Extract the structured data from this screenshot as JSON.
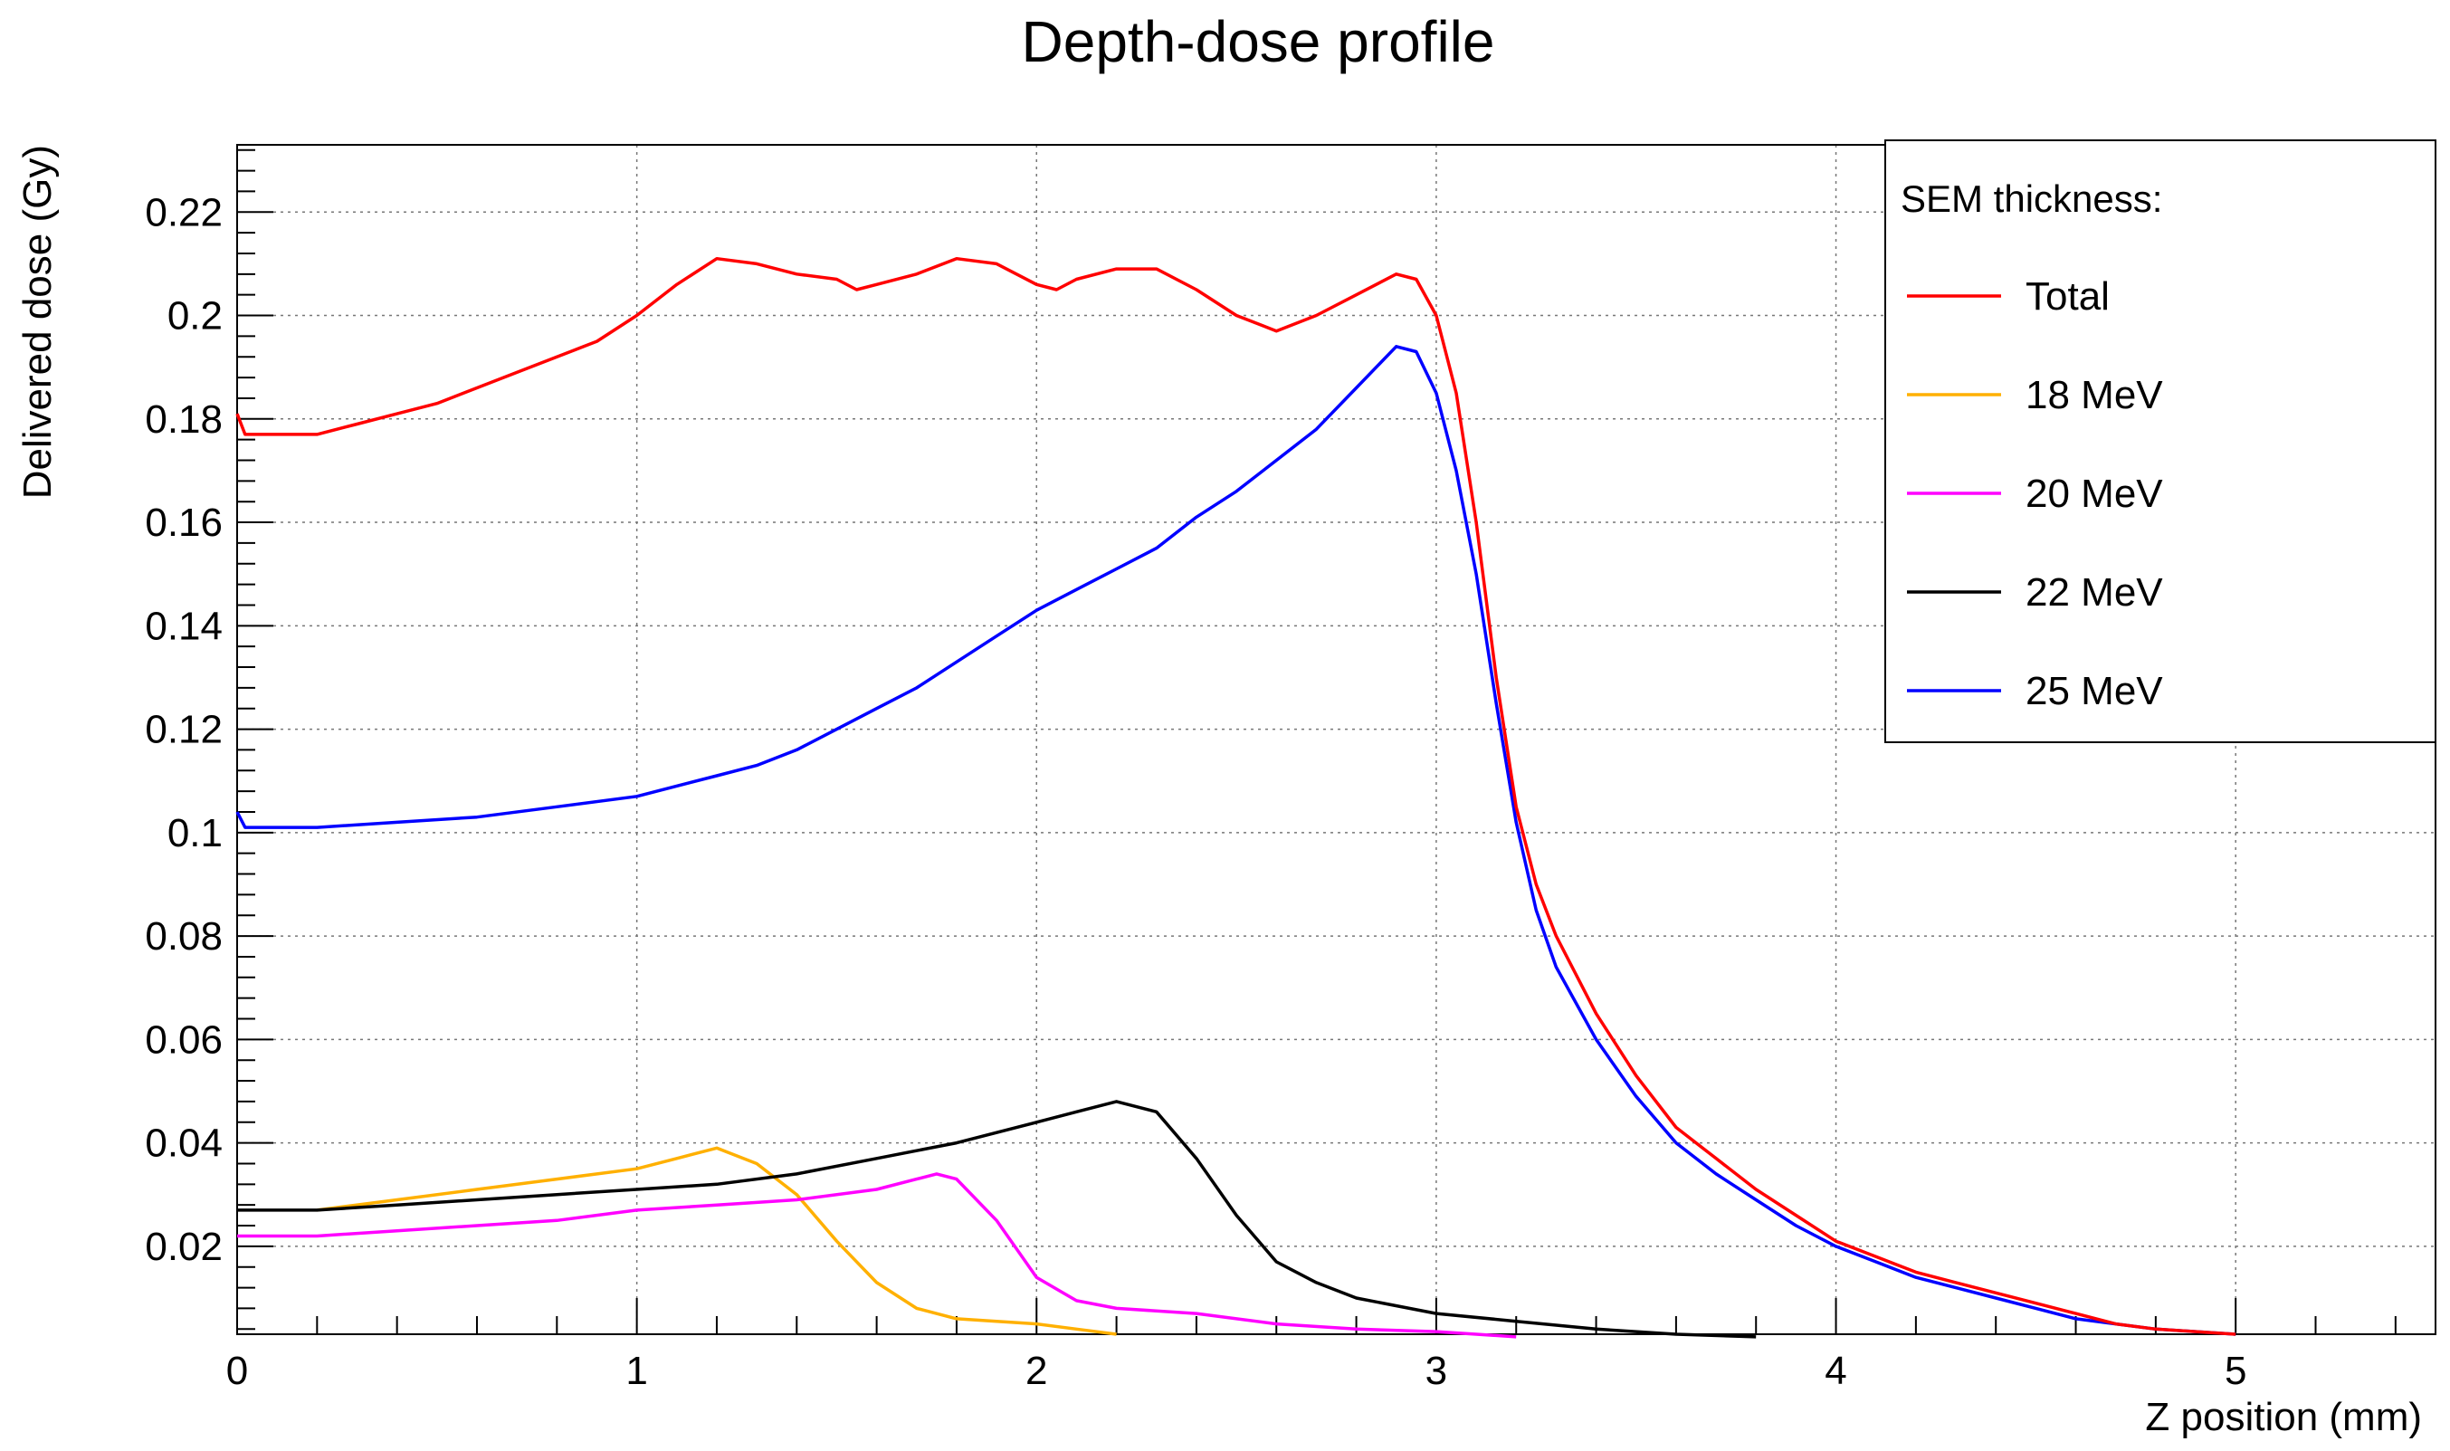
{
  "chart_data": {
    "type": "line",
    "title": "Depth-dose profile",
    "xlabel": "Z position (mm)",
    "ylabel": "Delivered dose (Gy)",
    "xlim": [
      0,
      5.5
    ],
    "ylim": [
      0.003,
      0.233
    ],
    "x_ticks": [
      {
        "v": 0,
        "label": "0"
      },
      {
        "v": 1,
        "label": "1"
      },
      {
        "v": 2,
        "label": "2"
      },
      {
        "v": 3,
        "label": "3"
      },
      {
        "v": 4,
        "label": "4"
      },
      {
        "v": 5,
        "label": "5"
      }
    ],
    "y_ticks": [
      {
        "v": 0.02,
        "label": "0.02"
      },
      {
        "v": 0.04,
        "label": "0.04"
      },
      {
        "v": 0.06,
        "label": "0.06"
      },
      {
        "v": 0.08,
        "label": "0.08"
      },
      {
        "v": 0.1,
        "label": "0.1"
      },
      {
        "v": 0.12,
        "label": "0.12"
      },
      {
        "v": 0.14,
        "label": "0.14"
      },
      {
        "v": 0.16,
        "label": "0.16"
      },
      {
        "v": 0.18,
        "label": "0.18"
      },
      {
        "v": 0.2,
        "label": "0.2"
      },
      {
        "v": 0.22,
        "label": "0.22"
      }
    ],
    "grid": true,
    "legend_title": "SEM thickness:",
    "legend_position": "top-right",
    "series": [
      {
        "name": "Total",
        "color": "#ff0000",
        "points": [
          [
            0,
            0.181
          ],
          [
            0.02,
            0.177
          ],
          [
            0.1,
            0.177
          ],
          [
            0.2,
            0.177
          ],
          [
            0.3,
            0.179
          ],
          [
            0.4,
            0.181
          ],
          [
            0.5,
            0.183
          ],
          [
            0.6,
            0.186
          ],
          [
            0.7,
            0.189
          ],
          [
            0.8,
            0.192
          ],
          [
            0.9,
            0.195
          ],
          [
            1.0,
            0.2
          ],
          [
            1.1,
            0.206
          ],
          [
            1.2,
            0.211
          ],
          [
            1.3,
            0.21
          ],
          [
            1.4,
            0.208
          ],
          [
            1.5,
            0.207
          ],
          [
            1.55,
            0.205
          ],
          [
            1.6,
            0.206
          ],
          [
            1.7,
            0.208
          ],
          [
            1.8,
            0.211
          ],
          [
            1.9,
            0.21
          ],
          [
            2.0,
            0.206
          ],
          [
            2.05,
            0.205
          ],
          [
            2.1,
            0.207
          ],
          [
            2.2,
            0.209
          ],
          [
            2.3,
            0.209
          ],
          [
            2.4,
            0.205
          ],
          [
            2.5,
            0.2
          ],
          [
            2.6,
            0.197
          ],
          [
            2.7,
            0.2
          ],
          [
            2.8,
            0.204
          ],
          [
            2.9,
            0.208
          ],
          [
            2.95,
            0.207
          ],
          [
            3.0,
            0.2
          ],
          [
            3.05,
            0.185
          ],
          [
            3.1,
            0.16
          ],
          [
            3.15,
            0.13
          ],
          [
            3.2,
            0.105
          ],
          [
            3.25,
            0.09
          ],
          [
            3.3,
            0.08
          ],
          [
            3.4,
            0.065
          ],
          [
            3.5,
            0.053
          ],
          [
            3.6,
            0.043
          ],
          [
            3.7,
            0.037
          ],
          [
            3.8,
            0.031
          ],
          [
            3.9,
            0.026
          ],
          [
            4.0,
            0.021
          ],
          [
            4.1,
            0.018
          ],
          [
            4.2,
            0.015
          ],
          [
            4.3,
            0.013
          ],
          [
            4.4,
            0.011
          ],
          [
            4.5,
            0.009
          ],
          [
            4.6,
            0.007
          ],
          [
            4.7,
            0.005
          ],
          [
            4.8,
            0.004
          ],
          [
            4.9,
            0.0035
          ],
          [
            5.0,
            0.003
          ]
        ]
      },
      {
        "name": "18 MeV",
        "color": "#ffb000",
        "points": [
          [
            0.2,
            0.027
          ],
          [
            0.4,
            0.029
          ],
          [
            0.6,
            0.031
          ],
          [
            0.8,
            0.033
          ],
          [
            1.0,
            0.035
          ],
          [
            1.1,
            0.037
          ],
          [
            1.2,
            0.039
          ],
          [
            1.3,
            0.036
          ],
          [
            1.4,
            0.03
          ],
          [
            1.5,
            0.021
          ],
          [
            1.6,
            0.013
          ],
          [
            1.7,
            0.008
          ],
          [
            1.8,
            0.006
          ],
          [
            1.9,
            0.0055
          ],
          [
            2.0,
            0.005
          ],
          [
            2.1,
            0.004
          ],
          [
            2.2,
            0.003
          ]
        ]
      },
      {
        "name": "20 MeV",
        "color": "#ff00ff",
        "points": [
          [
            0,
            0.022
          ],
          [
            0.2,
            0.022
          ],
          [
            0.4,
            0.023
          ],
          [
            0.6,
            0.024
          ],
          [
            0.8,
            0.025
          ],
          [
            1.0,
            0.027
          ],
          [
            1.2,
            0.028
          ],
          [
            1.4,
            0.029
          ],
          [
            1.6,
            0.031
          ],
          [
            1.7,
            0.033
          ],
          [
            1.75,
            0.034
          ],
          [
            1.8,
            0.033
          ],
          [
            1.9,
            0.025
          ],
          [
            2.0,
            0.014
          ],
          [
            2.1,
            0.0095
          ],
          [
            2.2,
            0.008
          ],
          [
            2.4,
            0.007
          ],
          [
            2.6,
            0.005
          ],
          [
            2.8,
            0.004
          ],
          [
            3.0,
            0.0035
          ],
          [
            3.1,
            0.003
          ],
          [
            3.2,
            0.0025
          ]
        ]
      },
      {
        "name": "22 MeV",
        "color": "#000000",
        "points": [
          [
            0,
            0.027
          ],
          [
            0.2,
            0.027
          ],
          [
            0.4,
            0.028
          ],
          [
            0.6,
            0.029
          ],
          [
            0.8,
            0.03
          ],
          [
            1.0,
            0.031
          ],
          [
            1.2,
            0.032
          ],
          [
            1.4,
            0.034
          ],
          [
            1.6,
            0.037
          ],
          [
            1.8,
            0.04
          ],
          [
            2.0,
            0.044
          ],
          [
            2.1,
            0.046
          ],
          [
            2.2,
            0.048
          ],
          [
            2.3,
            0.046
          ],
          [
            2.4,
            0.037
          ],
          [
            2.5,
            0.026
          ],
          [
            2.6,
            0.017
          ],
          [
            2.7,
            0.013
          ],
          [
            2.8,
            0.01
          ],
          [
            3.0,
            0.007
          ],
          [
            3.2,
            0.0055
          ],
          [
            3.4,
            0.004
          ],
          [
            3.6,
            0.003
          ],
          [
            3.8,
            0.0025
          ]
        ]
      },
      {
        "name": "25 MeV",
        "color": "#0000ff",
        "points": [
          [
            0,
            0.104
          ],
          [
            0.02,
            0.101
          ],
          [
            0.1,
            0.101
          ],
          [
            0.2,
            0.101
          ],
          [
            0.4,
            0.102
          ],
          [
            0.6,
            0.103
          ],
          [
            0.8,
            0.105
          ],
          [
            1.0,
            0.107
          ],
          [
            1.2,
            0.111
          ],
          [
            1.3,
            0.113
          ],
          [
            1.4,
            0.116
          ],
          [
            1.5,
            0.12
          ],
          [
            1.6,
            0.124
          ],
          [
            1.7,
            0.128
          ],
          [
            1.8,
            0.133
          ],
          [
            1.9,
            0.138
          ],
          [
            2.0,
            0.143
          ],
          [
            2.1,
            0.147
          ],
          [
            2.2,
            0.151
          ],
          [
            2.3,
            0.155
          ],
          [
            2.4,
            0.161
          ],
          [
            2.5,
            0.166
          ],
          [
            2.6,
            0.172
          ],
          [
            2.7,
            0.178
          ],
          [
            2.8,
            0.186
          ],
          [
            2.9,
            0.194
          ],
          [
            2.95,
            0.193
          ],
          [
            3.0,
            0.185
          ],
          [
            3.05,
            0.17
          ],
          [
            3.1,
            0.15
          ],
          [
            3.15,
            0.125
          ],
          [
            3.2,
            0.102
          ],
          [
            3.25,
            0.085
          ],
          [
            3.3,
            0.074
          ],
          [
            3.4,
            0.06
          ],
          [
            3.5,
            0.049
          ],
          [
            3.6,
            0.04
          ],
          [
            3.7,
            0.034
          ],
          [
            3.8,
            0.029
          ],
          [
            3.9,
            0.024
          ],
          [
            4.0,
            0.02
          ],
          [
            4.1,
            0.017
          ],
          [
            4.2,
            0.014
          ],
          [
            4.3,
            0.012
          ],
          [
            4.4,
            0.01
          ],
          [
            4.5,
            0.008
          ],
          [
            4.6,
            0.006
          ],
          [
            4.7,
            0.005
          ],
          [
            4.8,
            0.004
          ],
          [
            4.9,
            0.0035
          ],
          [
            5.0,
            0.003
          ]
        ]
      }
    ]
  }
}
